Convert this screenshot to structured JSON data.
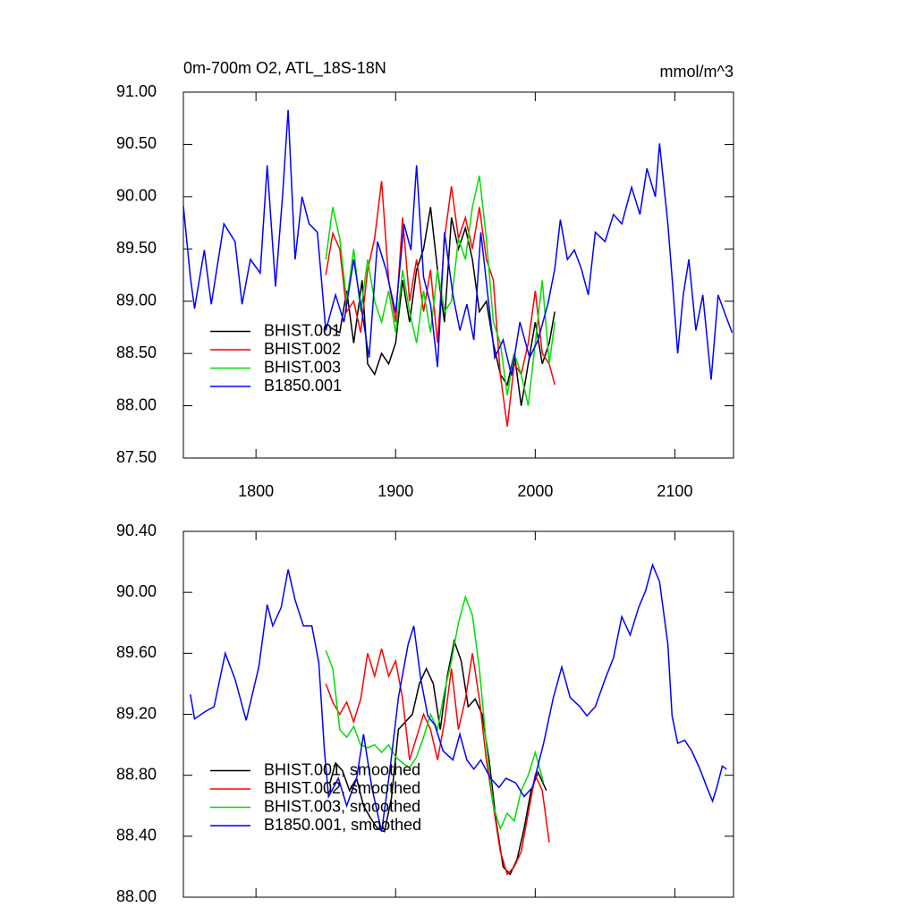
{
  "chart_data": [
    {
      "type": "line",
      "title": "0m-700m O2, ATL_18S-18N",
      "right_title": "mmol/m^3",
      "xlim": [
        1748,
        2142
      ],
      "xticks": [
        1800,
        1900,
        2000,
        2100
      ],
      "ylim": [
        87.5,
        91.0
      ],
      "yticks": [
        {
          "value": 87.5,
          "label": "87.50"
        },
        {
          "value": 88.0,
          "label": "88.00"
        },
        {
          "value": 88.5,
          "label": "88.50"
        },
        {
          "value": 89.0,
          "label": "89.00"
        },
        {
          "value": 89.5,
          "label": "89.50"
        },
        {
          "value": 90.0,
          "label": "90.00"
        },
        {
          "value": 90.5,
          "label": "90.50"
        },
        {
          "value": 91.0,
          "label": "91.00"
        }
      ],
      "legend": "lower left",
      "series": [
        {
          "name": "BHIST.001",
          "color": "#000000",
          "x": [
            1853,
            1860,
            1865,
            1870,
            1876,
            1880,
            1885,
            1890,
            1895,
            1900,
            1905,
            1910,
            1915,
            1920,
            1925,
            1930,
            1935,
            1940,
            1945,
            1950,
            1955,
            1960,
            1965,
            1970,
            1975,
            1980,
            1985,
            1990,
            1995,
            2000,
            2005,
            2010,
            2014
          ],
          "values": [
            88.75,
            88.7,
            89.1,
            88.6,
            89.2,
            88.4,
            88.3,
            88.5,
            88.4,
            88.6,
            89.2,
            88.8,
            89.3,
            89.5,
            89.9,
            89.3,
            88.8,
            89.8,
            89.5,
            89.7,
            89.4,
            88.9,
            89.0,
            88.6,
            88.3,
            88.2,
            88.5,
            88.0,
            88.4,
            88.8,
            88.4,
            88.6,
            88.9
          ]
        },
        {
          "name": "BHIST.002",
          "color": "#ff0000",
          "x": [
            1850,
            1855,
            1860,
            1865,
            1870,
            1875,
            1880,
            1885,
            1890,
            1895,
            1900,
            1905,
            1910,
            1915,
            1920,
            1925,
            1930,
            1935,
            1940,
            1945,
            1950,
            1955,
            1960,
            1965,
            1970,
            1975,
            1980,
            1985,
            1990,
            1995,
            2000,
            2005,
            2010,
            2014
          ],
          "values": [
            89.25,
            89.65,
            89.5,
            88.9,
            89.0,
            88.7,
            89.3,
            89.6,
            90.15,
            89.2,
            88.8,
            89.8,
            89.0,
            89.4,
            88.9,
            89.3,
            88.6,
            89.6,
            90.1,
            89.6,
            89.8,
            89.5,
            89.9,
            89.4,
            89.2,
            88.3,
            87.8,
            88.4,
            88.3,
            88.6,
            89.1,
            88.5,
            88.4,
            88.2
          ]
        },
        {
          "name": "BHIST.003",
          "color": "#00dd00",
          "x": [
            1850,
            1855,
            1860,
            1865,
            1870,
            1875,
            1880,
            1885,
            1890,
            1895,
            1900,
            1905,
            1910,
            1915,
            1920,
            1925,
            1930,
            1935,
            1940,
            1945,
            1950,
            1955,
            1960,
            1965,
            1970,
            1975,
            1980,
            1985,
            1990,
            1995,
            2000,
            2005,
            2010,
            2014
          ],
          "values": [
            89.4,
            89.9,
            89.6,
            89.0,
            89.5,
            88.9,
            89.4,
            89.0,
            88.8,
            89.1,
            88.7,
            89.3,
            88.9,
            88.6,
            89.1,
            88.7,
            89.3,
            88.9,
            89.0,
            89.6,
            89.4,
            89.9,
            90.2,
            89.6,
            88.8,
            88.6,
            88.1,
            88.5,
            88.3,
            88.0,
            88.6,
            89.2,
            88.4,
            88.8
          ]
        },
        {
          "name": "B1850.001",
          "color": "#0000ff",
          "x": [
            1748,
            1753,
            1756,
            1763,
            1768,
            1777,
            1785,
            1790,
            1796,
            1803,
            1808,
            1814,
            1819,
            1823,
            1828,
            1833,
            1838,
            1844,
            1850,
            1857,
            1863,
            1870,
            1876,
            1881,
            1887,
            1893,
            1900,
            1906,
            1911,
            1915,
            1920,
            1925,
            1930,
            1935,
            1941,
            1946,
            1951,
            1956,
            1961,
            1966,
            1971,
            1977,
            1983,
            1989,
            1996,
            2002,
            2009,
            2014,
            2018,
            2023,
            2028,
            2033,
            2038,
            2043,
            2050,
            2056,
            2062,
            2069,
            2075,
            2080,
            2086,
            2089,
            2095,
            2098,
            2102,
            2106,
            2110,
            2115,
            2120,
            2126,
            2131,
            2137,
            2141
          ],
          "values": [
            89.91,
            89.23,
            88.93,
            89.49,
            88.97,
            89.74,
            89.57,
            88.97,
            89.4,
            89.27,
            90.3,
            89.14,
            90.0,
            90.83,
            89.4,
            90.0,
            89.74,
            89.66,
            88.72,
            89.06,
            88.8,
            89.4,
            88.89,
            88.46,
            89.57,
            89.31,
            88.89,
            89.74,
            89.49,
            90.3,
            89.23,
            88.97,
            88.37,
            89.66,
            89.06,
            88.72,
            88.97,
            88.63,
            89.66,
            89.06,
            88.46,
            88.63,
            88.29,
            88.8,
            88.46,
            88.63,
            88.97,
            89.31,
            89.78,
            89.4,
            89.49,
            89.31,
            89.06,
            89.66,
            89.57,
            89.83,
            89.74,
            90.09,
            89.83,
            90.27,
            90.0,
            90.51,
            89.74,
            89.23,
            88.5,
            89.06,
            89.4,
            88.72,
            89.06,
            88.25,
            89.06,
            88.84,
            88.7
          ]
        }
      ]
    },
    {
      "type": "line",
      "xlim": [
        1748,
        2142
      ],
      "ylim": [
        88.0,
        90.4
      ],
      "yticks": [
        {
          "value": 88.0,
          "label": "88.00"
        },
        {
          "value": 88.4,
          "label": "88.40"
        },
        {
          "value": 88.8,
          "label": "88.80"
        },
        {
          "value": 89.2,
          "label": "89.20"
        },
        {
          "value": 89.6,
          "label": "89.60"
        },
        {
          "value": 90.0,
          "label": "90.00"
        },
        {
          "value": 90.4,
          "label": "90.40"
        }
      ],
      "legend": "lower left",
      "series": [
        {
          "name": "BHIST.001, smoothed",
          "color": "#000000",
          "x": [
            1853,
            1857,
            1862,
            1867,
            1872,
            1877,
            1882,
            1887,
            1892,
            1897,
            1902,
            1907,
            1912,
            1917,
            1922,
            1927,
            1932,
            1937,
            1942,
            1947,
            1952,
            1957,
            1962,
            1967,
            1972,
            1977,
            1982,
            1987,
            1992,
            1997,
            2002,
            2008
          ],
          "values": [
            88.75,
            88.88,
            88.83,
            88.7,
            88.78,
            88.6,
            88.52,
            88.45,
            88.43,
            88.65,
            89.1,
            89.15,
            89.2,
            89.4,
            89.5,
            89.4,
            89.1,
            89.45,
            89.68,
            89.55,
            89.25,
            89.3,
            89.2,
            88.9,
            88.5,
            88.2,
            88.15,
            88.25,
            88.45,
            88.7,
            88.82,
            88.7
          ]
        },
        {
          "name": "BHIST.002, smoothed",
          "color": "#ff0000",
          "x": [
            1850,
            1855,
            1860,
            1865,
            1870,
            1875,
            1880,
            1885,
            1890,
            1895,
            1900,
            1905,
            1910,
            1915,
            1920,
            1925,
            1930,
            1935,
            1940,
            1945,
            1950,
            1955,
            1960,
            1965,
            1970,
            1975,
            1980,
            1985,
            1990,
            1995,
            2000,
            2005,
            2010
          ],
          "values": [
            89.4,
            89.28,
            89.2,
            89.28,
            89.15,
            89.3,
            89.6,
            89.45,
            89.63,
            89.45,
            89.55,
            89.3,
            88.9,
            89.05,
            89.2,
            89.1,
            88.9,
            89.15,
            89.5,
            89.1,
            89.3,
            89.6,
            89.3,
            88.9,
            88.6,
            88.3,
            88.15,
            88.2,
            88.3,
            88.55,
            88.8,
            88.7,
            88.36
          ]
        },
        {
          "name": "BHIST.003, smoothed",
          "color": "#00dd00",
          "x": [
            1850,
            1855,
            1860,
            1865,
            1870,
            1875,
            1880,
            1885,
            1890,
            1895,
            1900,
            1905,
            1910,
            1915,
            1920,
            1925,
            1930,
            1935,
            1940,
            1945,
            1950,
            1955,
            1960,
            1965,
            1970,
            1975,
            1980,
            1985,
            1990,
            1995,
            2000,
            2006
          ],
          "values": [
            89.62,
            89.5,
            89.1,
            89.05,
            89.12,
            89.0,
            88.98,
            89.0,
            88.95,
            89.0,
            88.92,
            88.88,
            88.85,
            88.92,
            89.05,
            89.2,
            89.1,
            89.35,
            89.55,
            89.8,
            89.97,
            89.85,
            89.5,
            89.0,
            88.6,
            88.45,
            88.55,
            88.5,
            88.7,
            88.8,
            88.95,
            88.75
          ]
        },
        {
          "name": "B1850.001, smoothed",
          "color": "#0000ff",
          "x": [
            1753,
            1756,
            1764,
            1770,
            1778,
            1785,
            1793,
            1802,
            1808,
            1812,
            1818,
            1823,
            1828,
            1834,
            1840,
            1845,
            1849,
            1852,
            1859,
            1865,
            1872,
            1877,
            1883,
            1890,
            1896,
            1902,
            1909,
            1913,
            1918,
            1923,
            1928,
            1934,
            1941,
            1946,
            1951,
            1956,
            1961,
            1968,
            1974,
            1979,
            1986,
            1992,
            1998,
            2006,
            2013,
            2019,
            2025,
            2032,
            2037,
            2043,
            2050,
            2056,
            2062,
            2068,
            2074,
            2079,
            2084,
            2089,
            2095,
            2098,
            2102,
            2107,
            2112,
            2118,
            2123,
            2127,
            2130,
            2134,
            2137
          ],
          "values": [
            89.33,
            89.17,
            89.22,
            89.25,
            89.6,
            89.43,
            89.16,
            89.51,
            89.92,
            89.78,
            89.9,
            90.15,
            89.95,
            89.78,
            89.78,
            89.54,
            88.96,
            88.66,
            88.78,
            88.6,
            88.78,
            89.07,
            88.72,
            88.43,
            88.84,
            89.31,
            89.66,
            89.78,
            89.43,
            89.19,
            89.13,
            88.96,
            88.9,
            89.07,
            88.9,
            88.84,
            88.9,
            88.78,
            88.72,
            88.78,
            88.75,
            88.66,
            88.72,
            89.01,
            89.31,
            89.51,
            89.31,
            89.25,
            89.19,
            89.25,
            89.43,
            89.57,
            89.84,
            89.72,
            89.9,
            90.01,
            90.18,
            90.07,
            89.66,
            89.19,
            89.01,
            89.03,
            88.96,
            88.84,
            88.72,
            88.63,
            88.72,
            88.86,
            88.84
          ]
        }
      ]
    }
  ]
}
